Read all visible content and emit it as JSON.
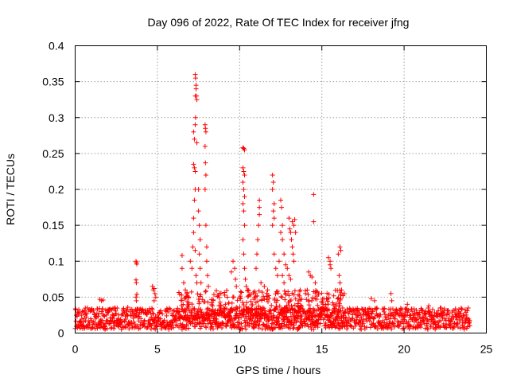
{
  "chart_data": {
    "type": "scatter",
    "title": "Day 096 of 2022, Rate Of TEC Index for receiver jfng",
    "xlabel": "GPS time / hours",
    "ylabel": "ROTI / TECUs",
    "xlim": [
      0,
      25
    ],
    "ylim": [
      0,
      0.4
    ],
    "xticks": [
      "0",
      "5",
      "10",
      "15",
      "20",
      "25"
    ],
    "yticks": [
      "0",
      "0.05",
      "0.1",
      "0.15",
      "0.2",
      "0.25",
      "0.3",
      "0.35",
      "0.4"
    ],
    "grid": true,
    "marker": "plus",
    "color": "#ff0000",
    "baseline_band": {
      "x_range": [
        0,
        24
      ],
      "y_typical": [
        0.005,
        0.035
      ]
    },
    "series": [
      {
        "values": [
          [
            1.5,
            0.047
          ],
          [
            1.6,
            0.045
          ],
          [
            1.7,
            0.046
          ],
          [
            2.4,
            0.035
          ],
          [
            3.2,
            0.036
          ],
          [
            3.7,
            0.1
          ],
          [
            3.72,
            0.098
          ],
          [
            3.75,
            0.096
          ],
          [
            3.7,
            0.074
          ],
          [
            3.72,
            0.07
          ],
          [
            3.75,
            0.054
          ],
          [
            3.7,
            0.05
          ],
          [
            3.72,
            0.045
          ],
          [
            4.7,
            0.065
          ],
          [
            4.75,
            0.06
          ],
          [
            4.8,
            0.062
          ],
          [
            4.85,
            0.055
          ],
          [
            4.9,
            0.05
          ],
          [
            4.8,
            0.045
          ],
          [
            6.5,
            0.108
          ],
          [
            6.5,
            0.09
          ],
          [
            6.6,
            0.07
          ],
          [
            6.7,
            0.06
          ],
          [
            6.8,
            0.055
          ],
          [
            6.9,
            0.05
          ],
          [
            7.0,
            0.1
          ],
          [
            7.1,
            0.09
          ],
          [
            7.15,
            0.12
          ],
          [
            7.2,
            0.16
          ],
          [
            7.25,
            0.185
          ],
          [
            7.3,
            0.2
          ],
          [
            7.2,
            0.14
          ],
          [
            7.3,
            0.115
          ],
          [
            7.35,
            0.08
          ],
          [
            7.4,
            0.07
          ],
          [
            7.2,
            0.235
          ],
          [
            7.25,
            0.23
          ],
          [
            7.3,
            0.225
          ],
          [
            7.2,
            0.28
          ],
          [
            7.25,
            0.27
          ],
          [
            7.3,
            0.29
          ],
          [
            7.3,
            0.33
          ],
          [
            7.3,
            0.36
          ],
          [
            7.32,
            0.355
          ],
          [
            7.35,
            0.345
          ],
          [
            7.35,
            0.34
          ],
          [
            7.38,
            0.33
          ],
          [
            7.4,
            0.325
          ],
          [
            7.32,
            0.3
          ],
          [
            7.4,
            0.265
          ],
          [
            7.5,
            0.2
          ],
          [
            7.5,
            0.17
          ],
          [
            7.55,
            0.15
          ],
          [
            7.6,
            0.13
          ],
          [
            7.55,
            0.11
          ],
          [
            7.6,
            0.09
          ],
          [
            7.65,
            0.07
          ],
          [
            7.9,
            0.29
          ],
          [
            7.92,
            0.285
          ],
          [
            7.95,
            0.28
          ],
          [
            7.9,
            0.26
          ],
          [
            7.92,
            0.237
          ],
          [
            7.95,
            0.22
          ],
          [
            7.9,
            0.2
          ],
          [
            7.95,
            0.15
          ],
          [
            8.0,
            0.12
          ],
          [
            8.0,
            0.1
          ],
          [
            8.05,
            0.08
          ],
          [
            8.1,
            0.065
          ],
          [
            9.5,
            0.085
          ],
          [
            9.6,
            0.1
          ],
          [
            9.7,
            0.09
          ],
          [
            9.75,
            0.075
          ],
          [
            9.8,
            0.065
          ],
          [
            10.2,
            0.258
          ],
          [
            10.25,
            0.257
          ],
          [
            10.3,
            0.255
          ],
          [
            10.2,
            0.23
          ],
          [
            10.25,
            0.225
          ],
          [
            10.3,
            0.22
          ],
          [
            10.2,
            0.21
          ],
          [
            10.25,
            0.2
          ],
          [
            10.3,
            0.19
          ],
          [
            10.2,
            0.18
          ],
          [
            10.25,
            0.17
          ],
          [
            10.3,
            0.15
          ],
          [
            10.2,
            0.13
          ],
          [
            10.25,
            0.11
          ],
          [
            10.3,
            0.09
          ],
          [
            10.35,
            0.075
          ],
          [
            10.4,
            0.065
          ],
          [
            10.5,
            0.06
          ],
          [
            11.0,
            0.09
          ],
          [
            11.05,
            0.11
          ],
          [
            11.1,
            0.13
          ],
          [
            11.15,
            0.15
          ],
          [
            11.2,
            0.165
          ],
          [
            11.2,
            0.175
          ],
          [
            11.2,
            0.185
          ],
          [
            11.3,
            0.07
          ],
          [
            11.5,
            0.065
          ],
          [
            11.7,
            0.06
          ],
          [
            12.0,
            0.22
          ],
          [
            12.05,
            0.21
          ],
          [
            12.0,
            0.2
          ],
          [
            12.1,
            0.18
          ],
          [
            12.05,
            0.17
          ],
          [
            12.1,
            0.16
          ],
          [
            12.0,
            0.15
          ],
          [
            12.1,
            0.11
          ],
          [
            12.2,
            0.09
          ],
          [
            12.3,
            0.08
          ],
          [
            12.4,
            0.1
          ],
          [
            12.5,
            0.185
          ],
          [
            12.55,
            0.175
          ],
          [
            12.6,
            0.15
          ],
          [
            12.5,
            0.14
          ],
          [
            12.6,
            0.13
          ],
          [
            12.7,
            0.11
          ],
          [
            12.8,
            0.095
          ],
          [
            12.9,
            0.09
          ],
          [
            12.6,
            0.08
          ],
          [
            12.7,
            0.07
          ],
          [
            13.0,
            0.16
          ],
          [
            13.05,
            0.145
          ],
          [
            13.1,
            0.14
          ],
          [
            13.15,
            0.13
          ],
          [
            13.2,
            0.12
          ],
          [
            13.25,
            0.11
          ],
          [
            13.3,
            0.1
          ],
          [
            13.2,
            0.155
          ],
          [
            13.3,
            0.15
          ],
          [
            13.35,
            0.158
          ],
          [
            13.4,
            0.14
          ],
          [
            13.0,
            0.08
          ],
          [
            13.1,
            0.075
          ],
          [
            14.2,
            0.085
          ],
          [
            14.3,
            0.08
          ],
          [
            14.4,
            0.078
          ],
          [
            14.5,
            0.193
          ],
          [
            14.5,
            0.155
          ],
          [
            14.6,
            0.07
          ],
          [
            15.4,
            0.105
          ],
          [
            15.5,
            0.1
          ],
          [
            15.5,
            0.095
          ],
          [
            15.55,
            0.09
          ],
          [
            16.1,
            0.12
          ],
          [
            16.15,
            0.115
          ],
          [
            16.0,
            0.11
          ],
          [
            16.05,
            0.08
          ],
          [
            16.1,
            0.07
          ],
          [
            16.2,
            0.06
          ],
          [
            18.0,
            0.048
          ],
          [
            18.2,
            0.045
          ],
          [
            19.2,
            0.055
          ],
          [
            19.25,
            0.045
          ],
          [
            20.2,
            0.04
          ],
          [
            21.5,
            0.038
          ],
          [
            22.2,
            0.035
          ]
        ]
      }
    ]
  }
}
